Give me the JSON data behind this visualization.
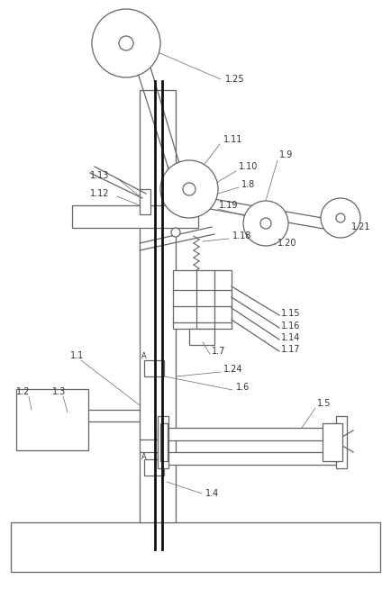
{
  "bg_color": "#ffffff",
  "line_color": "#666666",
  "label_color": "#333333",
  "fig_width": 4.35,
  "fig_height": 6.64,
  "dpi": 100
}
